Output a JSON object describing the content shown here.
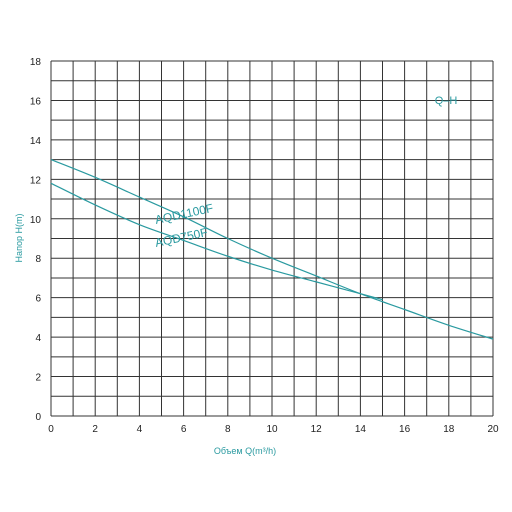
{
  "chart_data": {
    "type": "line",
    "title": "",
    "tag": "Q–H",
    "xlabel": "Объем Q(m³/h)",
    "ylabel": "Напор H(m)",
    "xlim": [
      0,
      20
    ],
    "ylim": [
      0,
      18
    ],
    "x_ticks": [
      "0",
      "2",
      "4",
      "6",
      "8",
      "10",
      "12",
      "14",
      "16",
      "18",
      "20"
    ],
    "y_ticks": [
      "0",
      "2",
      "4",
      "6",
      "8",
      "10",
      "12",
      "14",
      "16",
      "18"
    ],
    "grid": true,
    "series": [
      {
        "name": "AQD1100F",
        "x": [
          0,
          2,
          4,
          6,
          8,
          10,
          12,
          14,
          16,
          18,
          20
        ],
        "y": [
          13.0,
          12.1,
          11.1,
          10.1,
          9.0,
          8.0,
          7.1,
          6.2,
          5.4,
          4.6,
          3.9
        ]
      },
      {
        "name": "AQD750F",
        "x": [
          0,
          2,
          4,
          6,
          8,
          10,
          12,
          14,
          15
        ],
        "y": [
          11.8,
          10.7,
          9.7,
          8.9,
          8.1,
          7.4,
          6.8,
          6.2,
          5.9
        ]
      }
    ],
    "colors": {
      "line": "#2a9aa0",
      "grid": "#333333",
      "text": "#2a9aa0"
    }
  }
}
